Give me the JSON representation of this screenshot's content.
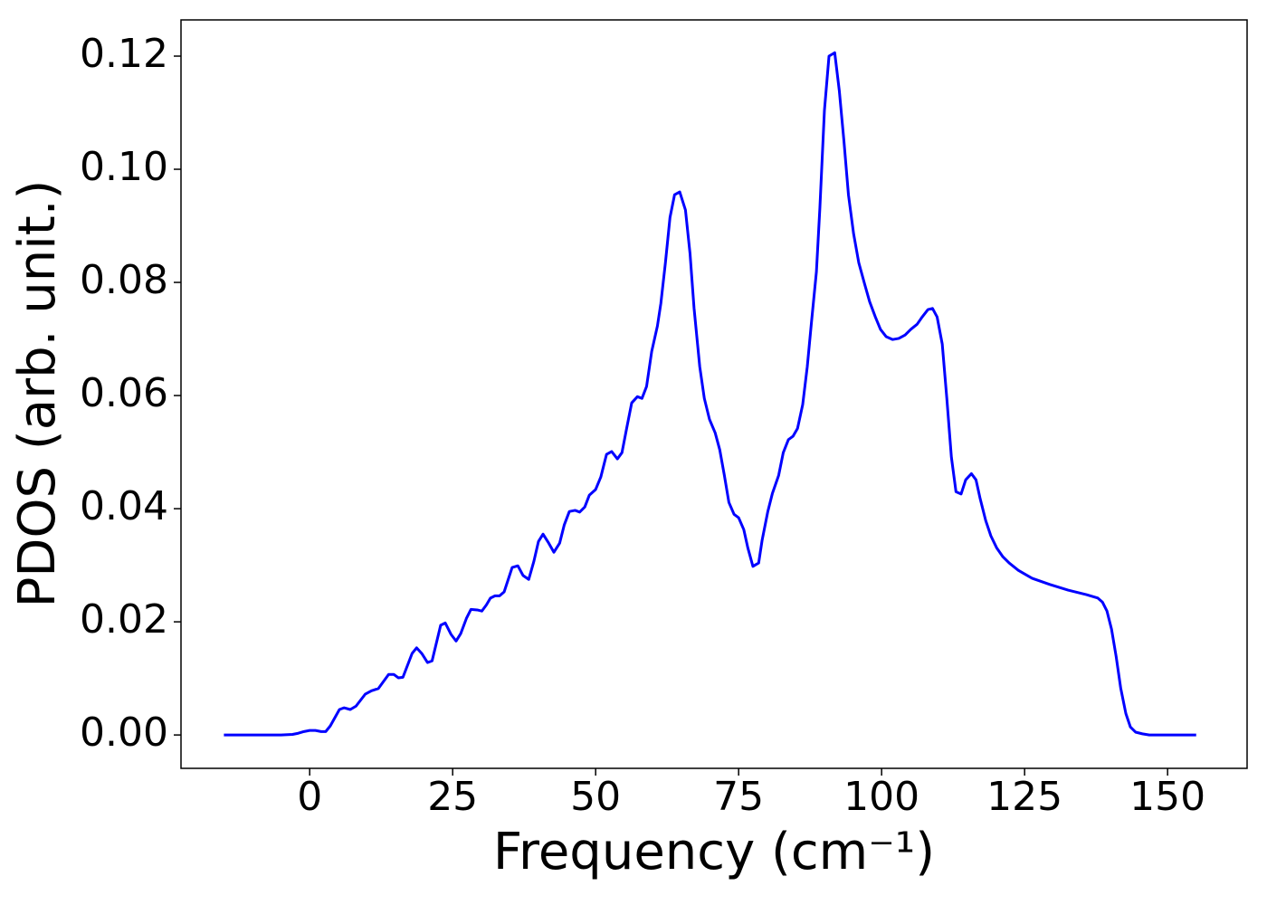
{
  "chart_data": {
    "type": "line",
    "xlabel": "Frequency (cm⁻¹)",
    "ylabel": "PDOS (arb. unit.)",
    "xlim": [
      -22.5,
      163.9
    ],
    "ylim": [
      -0.0059,
      0.1264
    ],
    "xticks": [
      0,
      25,
      50,
      75,
      100,
      125,
      150
    ],
    "yticks": [
      {
        "value": 0,
        "label": "0.00"
      },
      {
        "value": 0.02,
        "label": "0.02"
      },
      {
        "value": 0.04,
        "label": "0.04"
      },
      {
        "value": 0.06,
        "label": "0.06"
      },
      {
        "value": 0.08,
        "label": "0.08"
      },
      {
        "value": 0.1,
        "label": "0.10"
      },
      {
        "value": 0.12,
        "label": "0.12"
      }
    ],
    "grid": false,
    "color": "#0000ff",
    "x": [
      -15,
      -5,
      -3,
      -2,
      -1,
      0,
      1,
      2,
      2.8,
      3.6,
      5.2,
      6.0,
      7.1,
      8.1,
      9.7,
      10.8,
      12.0,
      13.8,
      14.7,
      15.5,
      16.3,
      17.9,
      18.7,
      19.6,
      20.6,
      21.4,
      22.9,
      23.7,
      24.7,
      25.6,
      26.4,
      27.4,
      28.2,
      29.3,
      30.1,
      30.9,
      31.6,
      32.4,
      33.2,
      34.0,
      35.4,
      36.4,
      37.3,
      38.3,
      39.2,
      40.0,
      40.8,
      41.8,
      42.7,
      43.7,
      44.5,
      45.4,
      46.4,
      47.2,
      48.1,
      48.9,
      50.0,
      50.9,
      51.9,
      52.8,
      53.8,
      54.6,
      55.4,
      56.3,
      57.3,
      58.1,
      58.9,
      59.8,
      60.8,
      61.4,
      62.2,
      63.0,
      63.8,
      64.7,
      65.7,
      66.5,
      67.2,
      68.2,
      69.0,
      69.9,
      70.9,
      71.7,
      72.5,
      73.3,
      74.2,
      75.0,
      75.9,
      76.6,
      77.5,
      78.5,
      79.1,
      80.1,
      80.9,
      82.0,
      82.8,
      83.7,
      84.5,
      85.3,
      86.2,
      87.0,
      87.7,
      88.6,
      89.2,
      90.0,
      90.8,
      91.8,
      92.6,
      93.4,
      94.2,
      95.1,
      96.0,
      97.0,
      97.9,
      98.9,
      99.8,
      100.8,
      101.9,
      103.0,
      104.1,
      105.1,
      106.2,
      107.1,
      108.1,
      108.9,
      109.7,
      110.6,
      111.4,
      112.2,
      113.0,
      113.9,
      114.7,
      115.7,
      116.5,
      117.2,
      118.2,
      119.1,
      120.1,
      121.2,
      122.3,
      123.9,
      126.3,
      129.4,
      132.6,
      135.8,
      137.8,
      138.6,
      139.4,
      140.2,
      141.0,
      141.8,
      142.7,
      143.5,
      144.4,
      145.6,
      146.8,
      155
    ],
    "values": [
      0,
      0,
      0.0001,
      0.0003,
      0.0006,
      0.0008,
      0.0008,
      0.0006,
      0.0006,
      0.0016,
      0.0045,
      0.0048,
      0.0045,
      0.0051,
      0.0072,
      0.0078,
      0.0082,
      0.0107,
      0.0107,
      0.0101,
      0.0102,
      0.0144,
      0.0154,
      0.0144,
      0.0128,
      0.0131,
      0.0194,
      0.0198,
      0.0178,
      0.0166,
      0.0179,
      0.0206,
      0.0222,
      0.0221,
      0.0219,
      0.023,
      0.0242,
      0.0246,
      0.0246,
      0.0253,
      0.0296,
      0.0299,
      0.0282,
      0.0275,
      0.0307,
      0.0342,
      0.0355,
      0.0339,
      0.0323,
      0.0339,
      0.0371,
      0.0395,
      0.0397,
      0.0394,
      0.0403,
      0.0424,
      0.0434,
      0.0456,
      0.0496,
      0.0501,
      0.0488,
      0.0499,
      0.0541,
      0.0587,
      0.0598,
      0.0595,
      0.0616,
      0.0678,
      0.0723,
      0.0763,
      0.0835,
      0.0915,
      0.0955,
      0.096,
      0.0928,
      0.0851,
      0.0755,
      0.0651,
      0.0595,
      0.0558,
      0.0534,
      0.0504,
      0.0459,
      0.0411,
      0.039,
      0.0384,
      0.0363,
      0.0331,
      0.0298,
      0.0304,
      0.0344,
      0.0395,
      0.0427,
      0.0459,
      0.0499,
      0.0522,
      0.0528,
      0.0542,
      0.0584,
      0.0651,
      0.0726,
      0.0819,
      0.0931,
      0.1104,
      0.12,
      0.1206,
      0.1139,
      0.1051,
      0.0955,
      0.0886,
      0.0835,
      0.0798,
      0.0766,
      0.0739,
      0.0717,
      0.0704,
      0.0699,
      0.0701,
      0.0707,
      0.0717,
      0.0726,
      0.0739,
      0.0752,
      0.0754,
      0.0739,
      0.0691,
      0.0595,
      0.0491,
      0.043,
      0.0426,
      0.0451,
      0.0462,
      0.0451,
      0.0419,
      0.0379,
      0.0352,
      0.0331,
      0.0315,
      0.0304,
      0.0291,
      0.0277,
      0.0266,
      0.0256,
      0.0248,
      0.0242,
      0.0235,
      0.0219,
      0.0187,
      0.0139,
      0.0083,
      0.0038,
      0.0014,
      0.0005,
      0.0002,
      0,
      0
    ]
  }
}
